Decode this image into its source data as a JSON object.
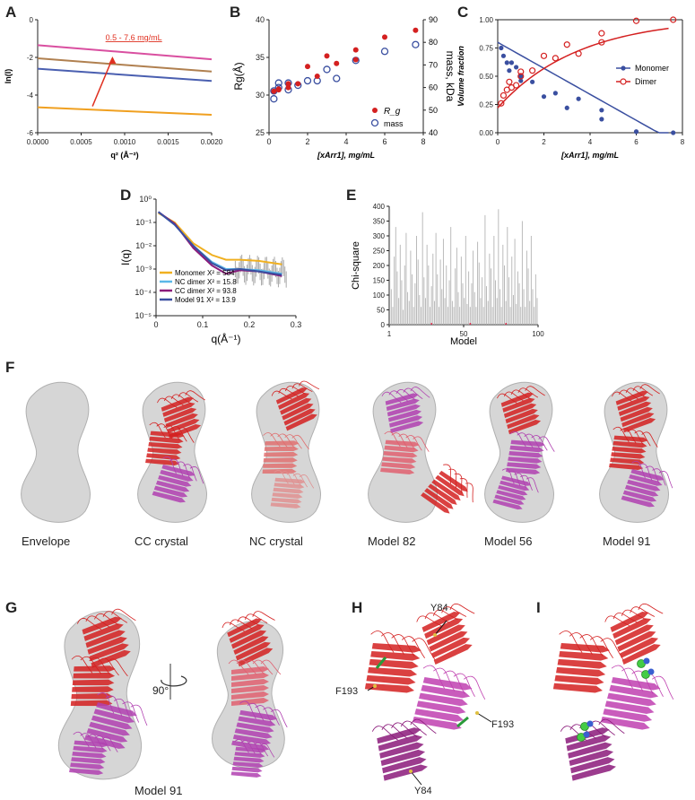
{
  "panel_labels": [
    "A",
    "B",
    "C",
    "D",
    "E",
    "F",
    "G",
    "H",
    "I"
  ],
  "chart_data": [
    {
      "panel": "A",
      "type": "line",
      "xlabel": "q² (Å⁻²)",
      "ylabel": "ln(I)",
      "xlim": [
        0,
        0.002
      ],
      "ylim": [
        -6,
        0
      ],
      "xticks": [
        "0.0000",
        "0.0005",
        "0.0010",
        "0.0015",
        "0.0020"
      ],
      "yticks": [
        "-6",
        "-4",
        "-2",
        "0"
      ],
      "annotation": "0.5 - 7.6 mg/mL",
      "series": [
        {
          "color": "#d94fa0",
          "x": [
            0,
            0.002
          ],
          "y": [
            -1.35,
            -2.1
          ]
        },
        {
          "color": "#b08050",
          "x": [
            0,
            0.002
          ],
          "y": [
            -2.05,
            -2.75
          ]
        },
        {
          "color": "#4a5fb0",
          "x": [
            0,
            0.002
          ],
          "y": [
            -2.6,
            -3.25
          ]
        },
        {
          "color": "#f0a020",
          "x": [
            0,
            0.002
          ],
          "y": [
            -4.65,
            -5.05
          ]
        }
      ]
    },
    {
      "panel": "B",
      "type": "scatter",
      "xlabel": "[xArr1], mg/mL",
      "ylabel": "Rg(Å)",
      "y2label": "mass, kDa",
      "xlim": [
        0,
        8
      ],
      "ylim": [
        25,
        40
      ],
      "y2lim": [
        40,
        90
      ],
      "xticks": [
        "0",
        "2",
        "4",
        "6",
        "8"
      ],
      "yticks": [
        "25",
        "30",
        "35",
        "40"
      ],
      "y2ticks": [
        "40",
        "50",
        "60",
        "70",
        "80",
        "90"
      ],
      "legend": [
        "R_g",
        "mass"
      ],
      "series": [
        {
          "name": "R_g",
          "x": [
            0.25,
            0.5,
            0.5,
            1,
            1,
            1.5,
            2,
            2.5,
            3,
            3.5,
            4.5,
            4.5,
            6,
            7.6
          ],
          "y": [
            30.5,
            30.8,
            30.7,
            31.5,
            31.0,
            31.5,
            33.8,
            32.5,
            35.2,
            34.2,
            36.0,
            34.7,
            37.7,
            38.6
          ]
        },
        {
          "name": "mass",
          "x": [
            0.25,
            0.25,
            0.5,
            0.5,
            1,
            1,
            1.5,
            2,
            2.5,
            3,
            3.5,
            4.5,
            6,
            7.6
          ],
          "y": [
            58.5,
            55,
            60,
            62,
            62,
            59,
            61,
            63,
            63,
            68,
            64,
            72,
            76,
            79
          ]
        }
      ]
    },
    {
      "panel": "C",
      "type": "scatter",
      "xlabel": "[xArr1], mg/mL",
      "ylabel": "Volume fraction",
      "xlim": [
        0,
        8
      ],
      "ylim": [
        0,
        1
      ],
      "xticks": [
        "0",
        "2",
        "4",
        "6",
        "8"
      ],
      "yticks": [
        "0.00",
        "0.25",
        "0.50",
        "0.75",
        "1.00"
      ],
      "legend": [
        "Monomer",
        "Dimer"
      ],
      "series": [
        {
          "name": "Monomer",
          "x": [
            0.15,
            0.25,
            0.4,
            0.5,
            0.6,
            0.8,
            1,
            1,
            1.5,
            2,
            2.5,
            3,
            3.5,
            4.5,
            4.5,
            6,
            7.6
          ],
          "y": [
            0.75,
            0.68,
            0.62,
            0.55,
            0.62,
            0.58,
            0.46,
            0.5,
            0.45,
            0.32,
            0.35,
            0.22,
            0.3,
            0.12,
            0.2,
            0.01,
            0.0
          ]
        },
        {
          "name": "Dimer",
          "x": [
            0.15,
            0.25,
            0.4,
            0.5,
            0.6,
            0.8,
            1,
            1,
            1.5,
            2,
            2.5,
            3,
            3.5,
            4.5,
            4.5,
            6,
            7.6
          ],
          "y": [
            0.26,
            0.33,
            0.38,
            0.45,
            0.4,
            0.42,
            0.54,
            0.5,
            0.55,
            0.68,
            0.66,
            0.78,
            0.7,
            0.88,
            0.8,
            0.99,
            1.0
          ]
        }
      ]
    },
    {
      "panel": "D",
      "type": "line",
      "xlabel": "q(Å⁻¹)",
      "ylabel": "I(q)",
      "xlim": [
        0,
        0.3
      ],
      "ylog": true,
      "ylim_exp": [
        -5,
        0
      ],
      "xticks": [
        "0",
        "0.1",
        "0.2",
        "0.3"
      ],
      "yticks": [
        "10⁰",
        "10⁻¹",
        "10⁻²",
        "10⁻³",
        "10⁻⁴",
        "10⁻⁵"
      ],
      "legend": [
        "Monomer X² = 584",
        "NC dimer X² = 15.8",
        "CC dimer X² = 93.8",
        "Model 91 X² = 13.9"
      ],
      "series": [
        {
          "name": "Monomer X² = 584",
          "color": "#f0b020",
          "x": [
            0.005,
            0.04,
            0.08,
            0.12,
            0.15,
            0.18,
            0.22,
            0.27
          ],
          "y": [
            -0.6,
            -1.0,
            -1.9,
            -2.4,
            -2.6,
            -2.6,
            -2.65,
            -2.8
          ]
        },
        {
          "name": "NC dimer X² = 15.8",
          "color": "#5bb8e8",
          "x": [
            0.005,
            0.04,
            0.08,
            0.12,
            0.15,
            0.18,
            0.22,
            0.27
          ],
          "y": [
            -0.55,
            -1.1,
            -2.0,
            -2.7,
            -3.0,
            -3.0,
            -3.05,
            -3.2
          ]
        },
        {
          "name": "CC dimer X² = 93.8",
          "color": "#8b1a7a",
          "x": [
            0.005,
            0.04,
            0.08,
            0.12,
            0.15,
            0.18,
            0.22,
            0.27
          ],
          "y": [
            -0.55,
            -1.05,
            -2.1,
            -2.85,
            -3.2,
            -3.05,
            -3.1,
            -3.3
          ]
        },
        {
          "name": "Model 91 X² = 13.9",
          "color": "#3a4fa0",
          "x": [
            0.005,
            0.04,
            0.08,
            0.12,
            0.15,
            0.18,
            0.22,
            0.27
          ],
          "y": [
            -0.55,
            -1.1,
            -2.0,
            -2.75,
            -3.05,
            -3.0,
            -3.1,
            -3.25
          ]
        }
      ]
    },
    {
      "panel": "E",
      "type": "bar",
      "xlabel": "Model",
      "ylabel": "Chi-square",
      "xlim": [
        1,
        100
      ],
      "ylim": [
        0,
        400
      ],
      "xticks": [
        "1",
        "50",
        "100"
      ],
      "yticks": [
        "0",
        "50",
        "100",
        "150",
        "200",
        "250",
        "300",
        "350",
        "400"
      ],
      "values": [
        390,
        120,
        60,
        230,
        330,
        180,
        90,
        270,
        150,
        50,
        200,
        310,
        110,
        80,
        250,
        170,
        60,
        140,
        300,
        220,
        100,
        60,
        380,
        160,
        90,
        270,
        200,
        60,
        130,
        240,
        80,
        310,
        170,
        60,
        220,
        120,
        290,
        90,
        200,
        60,
        150,
        330,
        80,
        60,
        190,
        260,
        110,
        60,
        230,
        140,
        90,
        300,
        70,
        180,
        60,
        140,
        250,
        110,
        60,
        280,
        210,
        90,
        160,
        60,
        370,
        130,
        80,
        240,
        190,
        60,
        300,
        150,
        90,
        390,
        120,
        60,
        270,
        200,
        80,
        330,
        160,
        60,
        230,
        100,
        290,
        70,
        180,
        140,
        60,
        350,
        120,
        60,
        250,
        190,
        80,
        300,
        120,
        60,
        170,
        90
      ]
    }
  ],
  "panel_f": {
    "captions": [
      "Envelope",
      "CC crystal",
      "NC crystal",
      "Model 82",
      "Model 56",
      "Model 91"
    ]
  },
  "panel_g": {
    "rotation_label": "90°",
    "caption": "Model 91"
  },
  "panel_h": {
    "labels": [
      "Y84",
      "F193",
      "F193",
      "Y84"
    ]
  },
  "colors": {
    "red": "#d42020",
    "magenta": "#b040b0",
    "envelope": "#c8c8c8"
  }
}
